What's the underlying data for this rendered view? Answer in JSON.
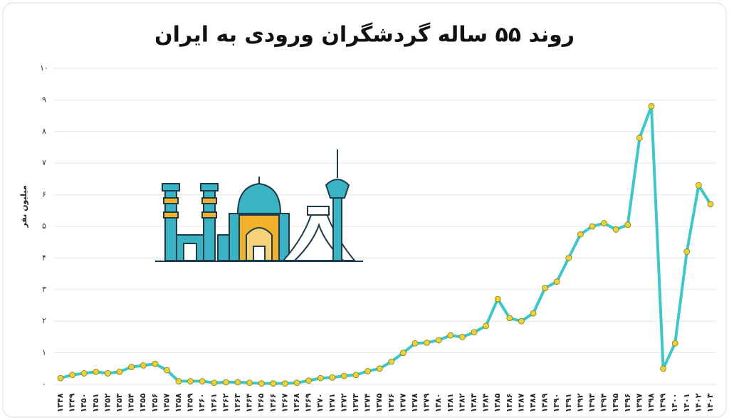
{
  "chart_data": {
    "type": "line",
    "title": "روند ۵۵ ساله گردشگران ورودی به ایران",
    "y_label": "میلیون نفر",
    "categories": [
      "۱۳۴۸",
      "۱۳۴۹",
      "۱۳۵۰",
      "۱۳۵۱",
      "۱۳۵۲",
      "۱۳۵۳",
      "۱۳۵۴",
      "۱۳۵۵",
      "۱۳۵۶",
      "۱۳۵۷",
      "۱۳۵۸",
      "۱۳۵۹",
      "۱۳۶۰",
      "۱۳۶۱",
      "۱۳۶۲",
      "۱۳۶۳",
      "۱۳۶۴",
      "۱۳۶۵",
      "۱۳۶۶",
      "۱۳۶۷",
      "۱۳۶۸",
      "۱۳۶۹",
      "۱۳۷۰",
      "۱۳۷۱",
      "۱۳۷۲",
      "۱۳۷۳",
      "۱۳۷۴",
      "۱۳۷۵",
      "۱۳۷۶",
      "۱۳۷۷",
      "۱۳۷۸",
      "۱۳۷۹",
      "۱۳۸۰",
      "۱۳۸۱",
      "۱۳۸۲",
      "۱۳۸۳",
      "۱۳۸۴",
      "۱۳۸۵",
      "۱۳۸۶",
      "۱۳۸۷",
      "۱۳۸۸",
      "۱۳۸۹",
      "۱۳۹۰",
      "۱۳۹۱",
      "۱۳۹۲",
      "۱۳۹۳",
      "۱۳۹۴",
      "۱۳۹۵",
      "۱۳۹۶",
      "۱۳۹۷",
      "۱۳۹۸",
      "۱۳۹۹",
      "۱۴۰۰",
      "۱۴۰۱",
      "۱۴۰۲",
      "۱۴۰۳"
    ],
    "values": [
      0.2,
      0.3,
      0.35,
      0.4,
      0.35,
      0.4,
      0.55,
      0.6,
      0.65,
      0.45,
      0.1,
      0.1,
      0.1,
      0.05,
      0.07,
      0.07,
      0.05,
      0.03,
      0.03,
      0.03,
      0.05,
      0.12,
      0.2,
      0.22,
      0.27,
      0.3,
      0.42,
      0.5,
      0.72,
      1.0,
      1.3,
      1.32,
      1.4,
      1.55,
      1.5,
      1.65,
      1.85,
      2.7,
      2.1,
      2.0,
      2.25,
      3.05,
      3.25,
      4.0,
      4.75,
      5.0,
      5.1,
      4.9,
      5.05,
      7.8,
      8.8,
      0.5,
      1.3,
      4.2,
      6.3,
      5.7
    ],
    "color": "#3ec7c9",
    "marker_color": "#e8d43a",
    "ylim": [
      0,
      10
    ],
    "yticks": [
      {
        "value": 0,
        "label": "۰"
      },
      {
        "value": 1,
        "label": "۱"
      },
      {
        "value": 2,
        "label": "۲"
      },
      {
        "value": 3,
        "label": "۳"
      },
      {
        "value": 4,
        "label": "۴"
      },
      {
        "value": 5,
        "label": "۵"
      },
      {
        "value": 6,
        "label": "۶"
      },
      {
        "value": 7,
        "label": "۷"
      },
      {
        "value": 8,
        "label": "۸"
      },
      {
        "value": 9,
        "label": "۹"
      },
      {
        "value": 10,
        "label": "۱۰"
      }
    ],
    "grid": true
  }
}
